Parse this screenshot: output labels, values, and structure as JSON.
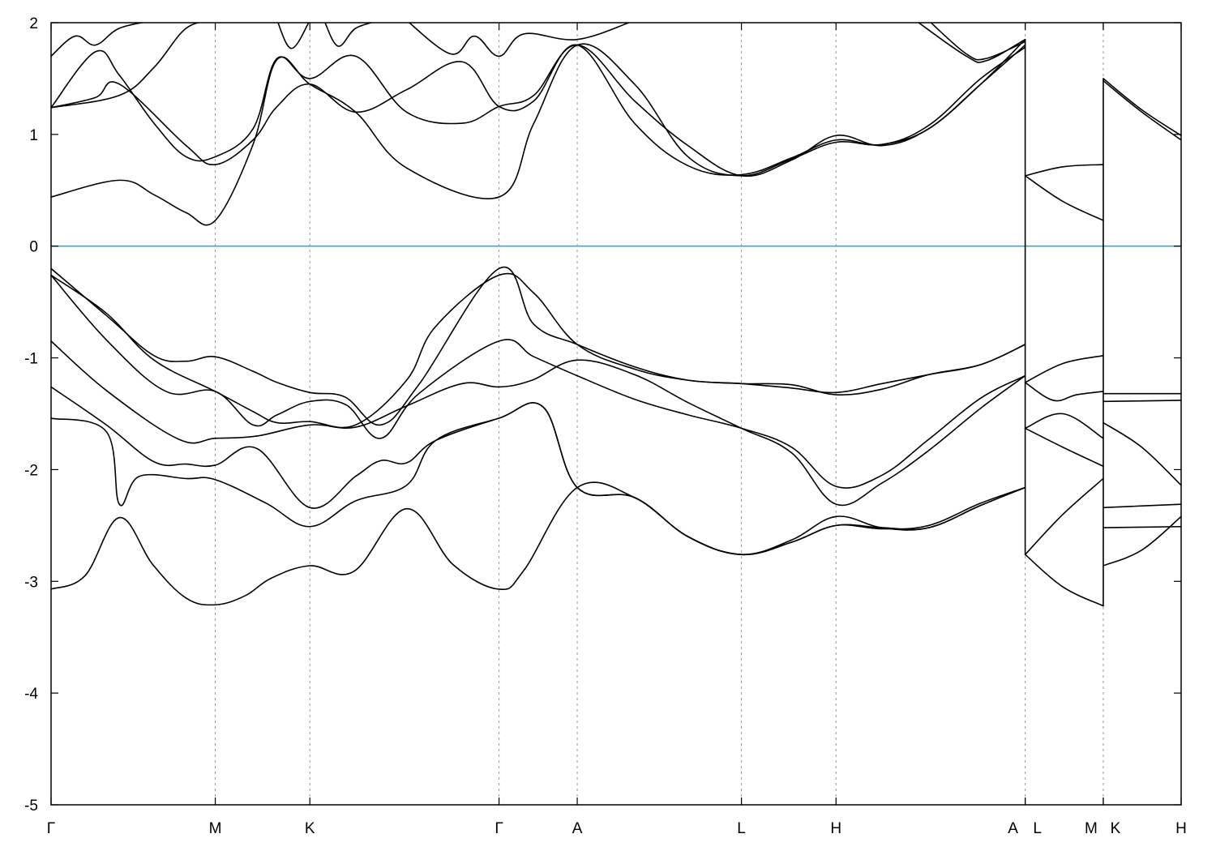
{
  "chart_data": {
    "type": "line",
    "title": "",
    "xlabel": "",
    "ylabel": "",
    "ylim": [
      -5,
      2
    ],
    "xlim": [
      0,
      1
    ],
    "grid": "vertical dashed lines at high-symmetry points",
    "legend": "none",
    "y_ticks": [
      2,
      1,
      0,
      -1,
      -2,
      -3,
      -4,
      -5
    ],
    "y_tick_labels": [
      "2",
      "1",
      "0",
      "-1",
      "-2",
      "-3",
      "-4",
      "-5"
    ],
    "fermi_level": 0,
    "fermi_color": "#40a8c8",
    "band_color": "#000000",
    "high_symmetry_points": [
      {
        "label": "Γ",
        "x": 0.0
      },
      {
        "label": "M",
        "x": 0.1453
      },
      {
        "label": "K",
        "x": 0.229
      },
      {
        "label": "Γ",
        "x": 0.3964
      },
      {
        "label": "A",
        "x": 0.4656
      },
      {
        "label": "L",
        "x": 0.6109
      },
      {
        "label": "H",
        "x": 0.6946
      },
      {
        "label": "A",
        "x": 0.862
      },
      {
        "label": "L",
        "x": 0.862
      },
      {
        "label": "M",
        "x": 0.9311
      },
      {
        "label": "K",
        "x": 0.9311
      },
      {
        "label": "H",
        "x": 1.0
      }
    ],
    "vertical_grid_x": [
      0.1453,
      0.229,
      0.3964,
      0.4656,
      0.6109,
      0.6946,
      0.862,
      0.9311
    ],
    "series": [
      {
        "x": [
          0.0,
          0.03,
          0.0604,
          0.09,
          0.1195,
          0.1453,
          0.1715,
          0.1952,
          0.229,
          0.268,
          0.3146,
          0.3557,
          0.3964,
          0.4185,
          0.4656,
          0.5163,
          0.5636,
          0.6109,
          0.6553,
          0.6946,
          0.7353,
          0.7765,
          0.8227,
          0.862
        ],
        "y": [
          -3.07,
          -2.95,
          -2.43,
          -2.85,
          -3.15,
          -3.21,
          -3.13,
          -2.97,
          -2.86,
          -2.91,
          -2.35,
          -2.85,
          -3.07,
          -2.9,
          -2.16,
          -2.25,
          -2.6,
          -2.76,
          -2.65,
          -2.5,
          -2.53,
          -2.5,
          -2.3,
          -2.16
        ]
      },
      {
        "x": [
          0.0,
          0.0489,
          0.0604,
          0.078,
          0.1195,
          0.1453,
          0.1902,
          0.229,
          0.2695,
          0.3146,
          0.3402,
          0.3964,
          0.4355,
          0.4656,
          0.5163,
          0.5636,
          0.6109,
          0.6553,
          0.6946,
          0.7353,
          0.7765,
          0.8227,
          0.862
        ],
        "y": [
          -1.54,
          -1.66,
          -2.31,
          -2.06,
          -2.08,
          -2.09,
          -2.3,
          -2.51,
          -2.28,
          -2.14,
          -1.74,
          -1.54,
          -1.44,
          -2.16,
          -2.25,
          -2.6,
          -2.76,
          -2.63,
          -2.42,
          -2.52,
          -2.52,
          -2.32,
          -2.16
        ]
      },
      {
        "x": [
          0.0,
          0.0489,
          0.0911,
          0.1195,
          0.1453,
          0.1819,
          0.229,
          0.2695,
          0.2916,
          0.3146,
          0.3402,
          0.3964,
          0.4355,
          0.4656,
          0.5163,
          0.5636,
          0.6109,
          0.6553,
          0.6946,
          0.7353,
          0.7765,
          0.8227,
          0.862
        ],
        "y": [
          -1.26,
          -1.6,
          -1.93,
          -1.95,
          -1.96,
          -1.81,
          -2.34,
          -2.06,
          -1.92,
          -1.94,
          -1.74,
          -1.54,
          -1.44,
          -2.16,
          -2.25,
          -2.6,
          -2.76,
          -2.65,
          -2.5,
          -2.52,
          -2.52,
          -2.32,
          -2.16
        ]
      },
      {
        "x": [
          0.0,
          0.05,
          0.1134,
          0.1453,
          0.1819,
          0.229,
          0.2695,
          0.3146,
          0.3638,
          0.3964,
          0.4256,
          0.4656,
          0.5163,
          0.5636,
          0.6109,
          0.6553,
          0.6946,
          0.7353,
          0.7765,
          0.8227,
          0.862
        ],
        "y": [
          -0.85,
          -1.3,
          -1.73,
          -1.72,
          -1.7,
          -1.6,
          -1.62,
          -1.43,
          -1.23,
          -1.26,
          -1.2,
          -1.02,
          -1.15,
          -1.4,
          -1.63,
          -1.85,
          -2.31,
          -2.12,
          -1.83,
          -1.45,
          -1.16
        ]
      },
      {
        "x": [
          0.0,
          0.05,
          0.1017,
          0.1453,
          0.1787,
          0.2,
          0.229,
          0.261,
          0.2916,
          0.3254,
          0.3964,
          0.4272,
          0.4656,
          0.5163,
          0.5636,
          0.6109,
          0.6553,
          0.6946,
          0.7353,
          0.7765,
          0.8227,
          0.862
        ],
        "y": [
          -0.26,
          -0.85,
          -1.3,
          -1.3,
          -1.6,
          -1.51,
          -1.39,
          -1.42,
          -1.72,
          -1.32,
          -0.85,
          -0.99,
          -1.16,
          -1.37,
          -1.51,
          -1.63,
          -1.8,
          -2.15,
          -2.05,
          -1.73,
          -1.36,
          -1.16
        ]
      },
      {
        "x": [
          0.0,
          0.05,
          0.0911,
          0.1195,
          0.1453,
          0.1787,
          0.2,
          0.229,
          0.26,
          0.2916,
          0.3254,
          0.3964,
          0.4272,
          0.4656,
          0.5163,
          0.5636,
          0.6109,
          0.6553,
          0.6946,
          0.7353,
          0.7765,
          0.8227,
          0.862
        ],
        "y": [
          -0.2,
          -0.63,
          -0.98,
          -1.03,
          -0.99,
          -1.12,
          -1.22,
          -1.31,
          -1.35,
          -1.6,
          -1.24,
          -0.2,
          -0.7,
          -0.88,
          -1.08,
          -1.2,
          -1.23,
          -1.27,
          -1.31,
          -1.23,
          -1.15,
          -1.06,
          -0.88
        ]
      },
      {
        "x": [
          0.0,
          0.0489,
          0.0911,
          0.1453,
          0.1787,
          0.2,
          0.229,
          0.2695,
          0.3146,
          0.3402,
          0.3964,
          0.4272,
          0.4656,
          0.5163,
          0.5636,
          0.6109,
          0.6553,
          0.6946,
          0.7353,
          0.7765,
          0.8227,
          0.862
        ],
        "y": [
          -0.26,
          -0.6,
          -1.02,
          -1.3,
          -1.48,
          -1.58,
          -1.57,
          -1.6,
          -1.2,
          -0.72,
          -0.26,
          -0.42,
          -0.88,
          -1.1,
          -1.2,
          -1.23,
          -1.24,
          -1.33,
          -1.28,
          -1.15,
          -1.06,
          -0.88
        ]
      },
      {
        "x": [
          0.0,
          0.0604,
          0.0911,
          0.1195,
          0.1453,
          0.1787,
          0.2,
          0.229,
          0.2695,
          0.3146,
          0.3964,
          0.4272,
          0.4656,
          0.5163,
          0.5636,
          0.6109,
          0.6553,
          0.6946,
          0.7353,
          0.7765,
          0.8227,
          0.862
        ],
        "y": [
          0.44,
          0.59,
          0.46,
          0.3,
          0.23,
          0.91,
          1.67,
          1.45,
          1.2,
          0.7,
          0.44,
          1.1,
          1.8,
          1.45,
          0.8,
          0.63,
          0.78,
          0.93,
          0.91,
          1.05,
          1.45,
          1.8
        ]
      },
      {
        "x": [
          0.0,
          0.0392,
          0.0604,
          0.1195,
          0.1453,
          0.1787,
          0.2,
          0.229,
          0.2695,
          0.3146,
          0.3638,
          0.3964,
          0.4272,
          0.4656,
          0.5163,
          0.5636,
          0.6109,
          0.6553,
          0.6946,
          0.7353,
          0.7765,
          0.8227,
          0.862
        ],
        "y": [
          1.24,
          1.33,
          1.45,
          0.9,
          0.73,
          0.95,
          1.25,
          1.45,
          1.2,
          1.4,
          1.65,
          1.25,
          1.3,
          1.8,
          1.1,
          0.72,
          0.64,
          0.79,
          0.95,
          0.91,
          1.08,
          1.5,
          1.78
        ]
      },
      {
        "x": [
          0.0,
          0.0392,
          0.0604,
          0.0911,
          0.1195,
          0.1453,
          0.1787,
          0.2,
          0.229,
          0.2695,
          0.3146,
          0.3638,
          0.3964,
          0.4272,
          0.4656,
          0.5163,
          0.5636,
          0.6109,
          0.6553,
          0.6946,
          0.7353,
          0.7765,
          0.8227,
          0.862
        ],
        "y": [
          1.24,
          1.74,
          1.53,
          1.1,
          0.8,
          0.8,
          1.05,
          1.68,
          1.5,
          1.7,
          1.2,
          1.1,
          1.25,
          1.35,
          1.8,
          1.3,
          0.9,
          0.63,
          0.77,
          0.99,
          0.9,
          1.05,
          1.45,
          1.85
        ]
      },
      {
        "x": [
          0.0,
          0.0213,
          0.0392,
          0.0604,
          0.0911
        ],
        "y": [
          1.7,
          1.88,
          1.8,
          1.95,
          2.02
        ]
      },
      {
        "x": [
          0.0,
          0.0604,
          0.0911,
          0.1195,
          0.1453
        ],
        "y": [
          1.24,
          1.35,
          1.6,
          1.95,
          2.02
        ]
      },
      {
        "x": [
          0.2,
          0.2128,
          0.229
        ],
        "y": [
          2.02,
          1.77,
          2.02
        ]
      },
      {
        "x": [
          0.2416,
          0.254,
          0.2695,
          0.2916
        ],
        "y": [
          2.02,
          1.79,
          1.95,
          2.02
        ]
      },
      {
        "x": [
          0.3146,
          0.354,
          0.3746,
          0.3964,
          0.4185,
          0.4656,
          0.5163
        ],
        "y": [
          2.02,
          1.72,
          1.88,
          1.7,
          1.9,
          1.85,
          2.02
        ]
      },
      {
        "x": [
          0.765,
          0.81,
          0.8277,
          0.862
        ],
        "y": [
          2.02,
          1.7,
          1.66,
          1.85
        ]
      },
      {
        "x": [
          0.7765,
          0.81,
          0.8277,
          0.862
        ],
        "y": [
          2.02,
          1.72,
          1.68,
          1.83
        ]
      },
      {
        "x": [
          0.862,
          0.8954,
          0.9311
        ],
        "y": [
          -1.22,
          -1.05,
          -0.98
        ]
      },
      {
        "x": [
          0.862,
          0.8868,
          0.9075,
          0.9311
        ],
        "y": [
          -1.22,
          -1.38,
          -1.33,
          -1.3
        ]
      },
      {
        "x": [
          0.862,
          0.8954,
          0.9311
        ],
        "y": [
          -1.63,
          -1.5,
          -1.72
        ]
      },
      {
        "x": [
          0.862,
          0.8954,
          0.9311
        ],
        "y": [
          -1.63,
          -1.8,
          -1.97
        ]
      },
      {
        "x": [
          0.862,
          0.8954,
          0.9311
        ],
        "y": [
          -2.76,
          -2.4,
          -2.08
        ]
      },
      {
        "x": [
          0.862,
          0.8954,
          0.9311
        ],
        "y": [
          -2.76,
          -3.05,
          -3.22
        ]
      },
      {
        "x": [
          0.862,
          0.8954,
          0.9311
        ],
        "y": [
          0.63,
          0.71,
          0.73
        ]
      },
      {
        "x": [
          0.862,
          0.8954,
          0.9311
        ],
        "y": [
          0.63,
          0.4,
          0.23
        ]
      },
      {
        "x": [
          0.9311,
          0.9652,
          1.0
        ],
        "y": [
          1.48,
          1.2,
          0.95
        ]
      },
      {
        "x": [
          0.9311,
          0.9652,
          1.0
        ],
        "y": [
          1.5,
          1.22,
          0.99
        ]
      },
      {
        "x": [
          0.9311,
          1.0
        ],
        "y": [
          -1.32,
          -1.32
        ]
      },
      {
        "x": [
          0.9311,
          1.0
        ],
        "y": [
          -1.39,
          -1.38
        ]
      },
      {
        "x": [
          0.9311,
          0.9652,
          1.0
        ],
        "y": [
          -1.58,
          -1.8,
          -2.14
        ]
      },
      {
        "x": [
          0.9311,
          1.0
        ],
        "y": [
          -2.34,
          -2.31
        ]
      },
      {
        "x": [
          0.9311,
          1.0
        ],
        "y": [
          -2.52,
          -2.51
        ]
      },
      {
        "x": [
          0.9311,
          0.9652,
          1.0
        ],
        "y": [
          -2.86,
          -2.72,
          -2.42
        ]
      }
    ],
    "discontinuities_x": [
      0.862,
      0.9311
    ]
  }
}
